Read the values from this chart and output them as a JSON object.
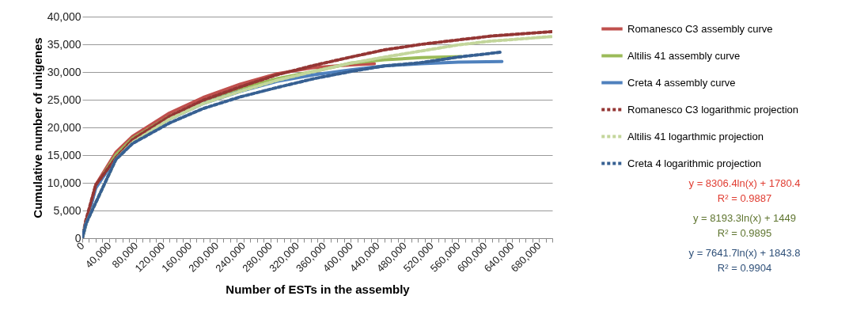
{
  "chart_data": {
    "type": "line",
    "xlabel": "Number of ESTs in the assembly",
    "ylabel": "Cumulative number of unigenes",
    "xlim": [
      0,
      700000
    ],
    "ylim": [
      0,
      40000
    ],
    "xticks": [
      0,
      {
        "value": 10000,
        "label": null
      },
      {
        "value": 20000,
        "label": null
      },
      {
        "value": 30000,
        "label": null
      },
      {
        "value": 40000,
        "label": "40,000"
      },
      {
        "value": 50000,
        "label": null
      },
      {
        "value": 60000,
        "label": null
      },
      {
        "value": 70000,
        "label": null
      },
      {
        "value": 80000,
        "label": "80,000"
      },
      {
        "value": 90000,
        "label": null
      },
      {
        "value": 100000,
        "label": null
      },
      {
        "value": 110000,
        "label": null
      },
      {
        "value": 120000,
        "label": "120,000"
      },
      {
        "value": 130000,
        "label": null
      },
      {
        "value": 140000,
        "label": null
      },
      {
        "value": 150000,
        "label": null
      },
      {
        "value": 160000,
        "label": "160,000"
      },
      {
        "value": 170000,
        "label": null
      },
      {
        "value": 180000,
        "label": null
      },
      {
        "value": 190000,
        "label": null
      },
      {
        "value": 200000,
        "label": "200,000"
      },
      {
        "value": 210000,
        "label": null
      },
      {
        "value": 220000,
        "label": null
      },
      {
        "value": 230000,
        "label": null
      },
      {
        "value": 240000,
        "label": "240,000"
      },
      {
        "value": 250000,
        "label": null
      },
      {
        "value": 260000,
        "label": null
      },
      {
        "value": 270000,
        "label": null
      },
      {
        "value": 280000,
        "label": "280,000"
      },
      {
        "value": 290000,
        "label": null
      },
      {
        "value": 300000,
        "label": null
      },
      {
        "value": 310000,
        "label": null
      },
      {
        "value": 320000,
        "label": "320,000"
      },
      {
        "value": 330000,
        "label": null
      },
      {
        "value": 340000,
        "label": null
      },
      {
        "value": 350000,
        "label": null
      },
      {
        "value": 360000,
        "label": "360,000"
      },
      {
        "value": 370000,
        "label": null
      },
      {
        "value": 380000,
        "label": null
      },
      {
        "value": 390000,
        "label": null
      },
      {
        "value": 400000,
        "label": "400,000"
      },
      {
        "value": 410000,
        "label": null
      },
      {
        "value": 420000,
        "label": null
      },
      {
        "value": 430000,
        "label": null
      },
      {
        "value": 440000,
        "label": "440,000"
      },
      {
        "value": 450000,
        "label": null
      },
      {
        "value": 460000,
        "label": null
      },
      {
        "value": 470000,
        "label": null
      },
      {
        "value": 480000,
        "label": "480,000"
      },
      {
        "value": 490000,
        "label": null
      },
      {
        "value": 500000,
        "label": null
      },
      {
        "value": 510000,
        "label": null
      },
      {
        "value": 520000,
        "label": "520,000"
      },
      {
        "value": 530000,
        "label": null
      },
      {
        "value": 540000,
        "label": null
      },
      {
        "value": 550000,
        "label": null
      },
      {
        "value": 560000,
        "label": "560,000"
      },
      {
        "value": 570000,
        "label": null
      },
      {
        "value": 580000,
        "label": null
      },
      {
        "value": 590000,
        "label": null
      },
      {
        "value": 600000,
        "label": "600,000"
      },
      {
        "value": 610000,
        "label": null
      },
      {
        "value": 620000,
        "label": null
      },
      {
        "value": 630000,
        "label": null
      },
      {
        "value": 640000,
        "label": "640,000"
      },
      {
        "value": 650000,
        "label": null
      },
      {
        "value": 660000,
        "label": null
      },
      {
        "value": 670000,
        "label": null
      },
      {
        "value": 680000,
        "label": "680,000"
      },
      {
        "value": 690000,
        "label": null
      },
      {
        "value": 700000,
        "label": null
      }
    ],
    "yticks": [
      0,
      {
        "value": 5000,
        "label": "5,000"
      },
      {
        "value": 10000,
        "label": "10,000"
      },
      {
        "value": 15000,
        "label": "15,000"
      },
      {
        "value": 20000,
        "label": "20,000"
      },
      {
        "value": 25000,
        "label": "25,000"
      },
      {
        "value": 30000,
        "label": "30,000"
      },
      {
        "value": 35000,
        "label": "35,000"
      },
      {
        "value": 40000,
        "label": "40,000"
      }
    ],
    "grid": "y",
    "legend": "right",
    "marker": "none",
    "series": [
      {
        "name": "Romanesco C3 assembly curve",
        "color": "#c0504d",
        "line_style": "solid",
        "x": [
          0,
          20000,
          50000,
          75000,
          130000,
          180000,
          235000,
          290000,
          345000,
          400000,
          435000
        ],
        "values": [
          0,
          9600,
          15500,
          18400,
          22600,
          25400,
          27800,
          29700,
          30800,
          31300,
          31500
        ]
      },
      {
        "name": "Altilis 41 assembly curve",
        "color": "#9bbb59",
        "line_style": "solid",
        "x": [
          0,
          20000,
          50000,
          75000,
          130000,
          180000,
          235000,
          290000,
          345000,
          400000,
          450000,
          505000,
          565000
        ],
        "values": [
          0,
          9300,
          15000,
          18000,
          22000,
          24700,
          27000,
          28800,
          30100,
          31600,
          32200,
          32600,
          32800
        ]
      },
      {
        "name": "Creta 4 assembly curve",
        "color": "#4f81bd",
        "line_style": "solid",
        "x": [
          0,
          20000,
          50000,
          75000,
          130000,
          180000,
          235000,
          290000,
          345000,
          400000,
          450000,
          505000,
          560000,
          625000
        ],
        "values": [
          0,
          9000,
          14500,
          17400,
          21500,
          24300,
          26500,
          28300,
          29500,
          30400,
          31100,
          31500,
          31800,
          31900
        ]
      },
      {
        "name": "Romanesco C3 logarithmic projection",
        "color": "#943634",
        "line_style": "dashed",
        "x": [
          0,
          5000,
          20000,
          50000,
          75000,
          130000,
          180000,
          235000,
          290000,
          345000,
          400000,
          450000,
          505000,
          560000,
          610000,
          700000
        ],
        "values": [
          0,
          3100,
          9600,
          14500,
          17800,
          22000,
          24900,
          27300,
          29500,
          31200,
          32700,
          34000,
          35000,
          35800,
          36500,
          37300
        ]
      },
      {
        "name": "Altilis 41 logarthmic projection",
        "color": "#c3d69b",
        "line_style": "dashed",
        "x": [
          0,
          5000,
          50000,
          75000,
          130000,
          180000,
          235000,
          290000,
          345000,
          400000,
          450000,
          505000,
          560000,
          610000,
          700000
        ],
        "values": [
          0,
          2500,
          14200,
          17300,
          21500,
          24300,
          26500,
          28500,
          30100,
          31600,
          32700,
          33800,
          34900,
          35600,
          36400
        ]
      },
      {
        "name": "Creta 4 logarithmic projection",
        "color": "#376092",
        "line_style": "dashed",
        "x": [
          0,
          5000,
          50000,
          75000,
          130000,
          180000,
          235000,
          290000,
          345000,
          400000,
          450000,
          505000,
          560000,
          625000
        ],
        "values": [
          0,
          2500,
          14200,
          17100,
          20800,
          23400,
          25500,
          27200,
          28800,
          30100,
          31100,
          31700,
          32700,
          33600
        ]
      }
    ],
    "annotations": [
      "y = 8306.4ln(x) + 1780.4\nR² = 0.9887",
      "y = 8193.3ln(x) + 1449\nR² = 0.9895",
      "y = 7641.7ln(x) + 1843.8\nR² = 0.9904"
    ]
  }
}
